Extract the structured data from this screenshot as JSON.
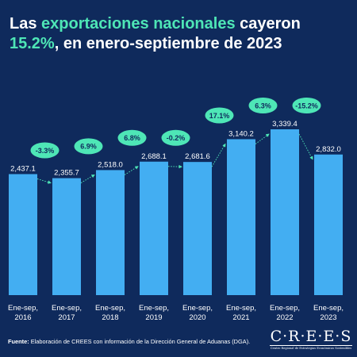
{
  "header": {
    "title_part1": "Las ",
    "title_highlight1": "exportaciones nacionales",
    "title_part2": " cayeron",
    "title_highlight2": "15.2%",
    "title_part3": ", en enero-septiembre de 2023"
  },
  "colors": {
    "background": "#0f2a5c",
    "bar": "#43aef2",
    "badge": "#4ee6b6",
    "highlight": "#4ee6b6",
    "connector": "#4ee6b6",
    "text": "#ffffff"
  },
  "chart_data": {
    "type": "bar",
    "categories": [
      [
        "Ene-sep,",
        "2016"
      ],
      [
        "Ene-sep,",
        "2017"
      ],
      [
        "Ene-sep,",
        "2018"
      ],
      [
        "Ene-sep,",
        "2019"
      ],
      [
        "Ene-sep,",
        "2020"
      ],
      [
        "Ene-sep,",
        "2021"
      ],
      [
        "Ene-sep,",
        "2022"
      ],
      [
        "Ene-sep,",
        "2023"
      ]
    ],
    "values": [
      2437.1,
      2355.7,
      2518.0,
      2688.1,
      2681.6,
      3140.2,
      3339.4,
      2832.0
    ],
    "value_labels": [
      "2,437.1",
      "2,355.7",
      "2,518.0",
      "2,688.1",
      "2,681.6",
      "3,140.2",
      "3,339.4",
      "2,832.0"
    ],
    "changes": [
      "-3.3%",
      "6.9%",
      "6.8%",
      "-0.2%",
      "17.1%",
      "6.3%",
      "-15.2%"
    ],
    "ylim": [
      0,
      3339.4
    ],
    "grid": false
  },
  "footer": {
    "source_label": "Fuente:",
    "source_text": " Elaboración de CREES con información de la Dirección General de Aduanas (DGA).",
    "logo_word": "CREES",
    "logo_sub": "Centro Regional de Estrategias Económicas Sostenibles"
  }
}
